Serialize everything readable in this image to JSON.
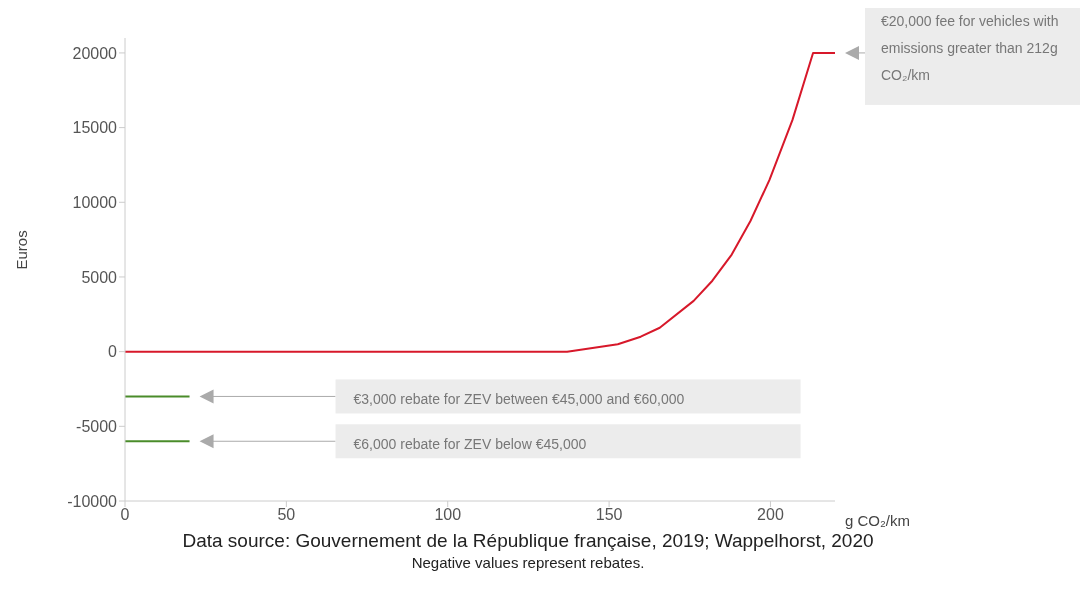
{
  "chart_data": {
    "type": "line",
    "ylabel": "Euros",
    "xlabel": "g CO₂/km",
    "xlim": [
      0,
      220
    ],
    "xticks": [
      0,
      50,
      100,
      150,
      200
    ],
    "ylim": [
      -10000,
      21000
    ],
    "yticks": [
      -10000,
      -5000,
      0,
      5000,
      10000,
      15000,
      20000
    ],
    "grid": false,
    "marker": "none",
    "line_style": "solid",
    "series": [
      {
        "color": "#d7182a",
        "x": [
          0,
          137,
          152.7,
          159.8,
          165.7,
          176.2,
          182,
          188,
          193.8,
          199.7,
          206.8,
          213.2,
          220
        ],
        "values": [
          0,
          0,
          500,
          1000,
          1600,
          3400,
          4750,
          6500,
          8750,
          11500,
          15500,
          20000,
          20000
        ]
      },
      {
        "color": "#4a8c2a",
        "x": [
          0,
          20
        ],
        "values": [
          -3000,
          -3000
        ]
      },
      {
        "color": "#4a8c2a",
        "x": [
          0,
          20
        ],
        "values": [
          -6000,
          -6000
        ]
      }
    ],
    "annotations": [
      "€20,000 fee for vehicles with emissions greater than 212g CO₂/km",
      "€3,000 rebate for ZEV between €45,000 and €60,000",
      "€6,000 rebate for ZEV below €45,000",
      "Data source: Gouvernement de la République française, 2019; Wappelhorst, 2020",
      "Negative values represent rebates."
    ]
  }
}
